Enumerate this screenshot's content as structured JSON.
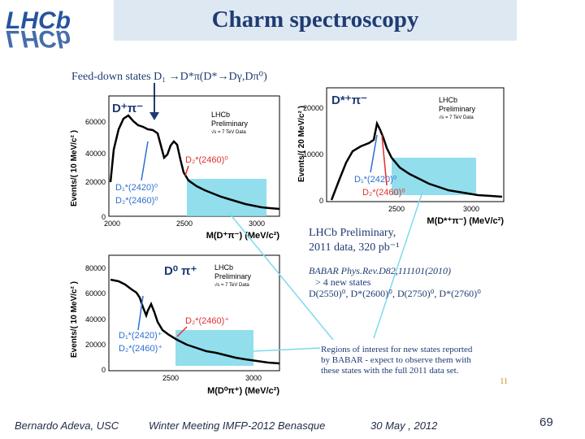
{
  "title": "Charm spectroscopy",
  "feed_down_label": "Feed-down states D₁ →D*π(D*→Dγ,Dπ⁰)",
  "logo_text": "LHCb",
  "plots": {
    "top_left": {
      "channel": "D⁺π⁻",
      "lhcb1": "LHCb",
      "lhcb2": "Preliminary",
      "lhcb3": "√s = 7 TeV Data",
      "ylabel": "Events/( 10 MeV/c² )",
      "xlabel": "M(D⁺π⁻) (MeV/c²)",
      "yticks": [
        "0",
        "20000",
        "40000",
        "60000"
      ],
      "xticks": [
        "2000",
        "2500",
        "3000"
      ],
      "annot_red": "D₂*(2460)⁰",
      "annot_blue1": "D₁*(2420)⁰",
      "annot_blue2": "D₂*(2460)⁰"
    },
    "top_right": {
      "channel": "D*⁺π⁻",
      "lhcb1": "LHCb",
      "lhcb2": "Preliminary",
      "lhcb3": "√s = 7 TeV Data",
      "ylabel": "Events/( 20 MeV/c² )",
      "xlabel": "M(D*⁺π⁻) (MeV/c²)",
      "yticks": [
        "0",
        "10000",
        "20000"
      ],
      "xticks": [
        "2500",
        "3000"
      ],
      "annot_blue": "D₁*(2420)⁰",
      "annot_red": "D₂*(2460)⁰"
    },
    "bottom_left": {
      "channel": "D⁰ π⁺",
      "lhcb1": "LHCb",
      "lhcb2": "Preliminary",
      "lhcb3": "√s = 7 TeV Data",
      "ylabel": "Events/( 10 MeV/c² )",
      "xlabel": "M(D⁰π⁺) (MeV/c²)",
      "yticks": [
        "0",
        "20000",
        "40000",
        "60000",
        "80000"
      ],
      "xticks": [
        "2500",
        "3000"
      ],
      "annot_red": "D₂*(2460)⁺",
      "annot_blue1": "D₁*(2420)⁺",
      "annot_blue2": "D₂*(2460)⁺"
    }
  },
  "note1": {
    "line1": "LHCb Preliminary,",
    "line2": "2011 data, 320 pb⁻¹"
  },
  "babar": {
    "line1": "BABAR Phys.Rev.D82,111101(2010)",
    "line2": "> 4 new states",
    "line3": "D(2550)⁰, D*(2600)⁰, D(2750)⁰, D*(2760)⁰"
  },
  "note2": {
    "line1": "Regions of interest for new states reported",
    "line2": "by BABAR - expect to observe them with",
    "line3": "these states with the full 2011 data set.",
    "page": "11"
  },
  "footer": {
    "author": "Bernardo Adeva, USC",
    "meeting": "Winter Meeting IMFP-2012  Benasque",
    "date": "30 May , 2012",
    "page": "69"
  },
  "colors": {
    "title": "#1f3b73",
    "highlight": "#7fd8ea",
    "annot_blue": "#2d6fd1",
    "annot_red": "#e03030",
    "arrow_cyan": "#7ed9ee"
  }
}
